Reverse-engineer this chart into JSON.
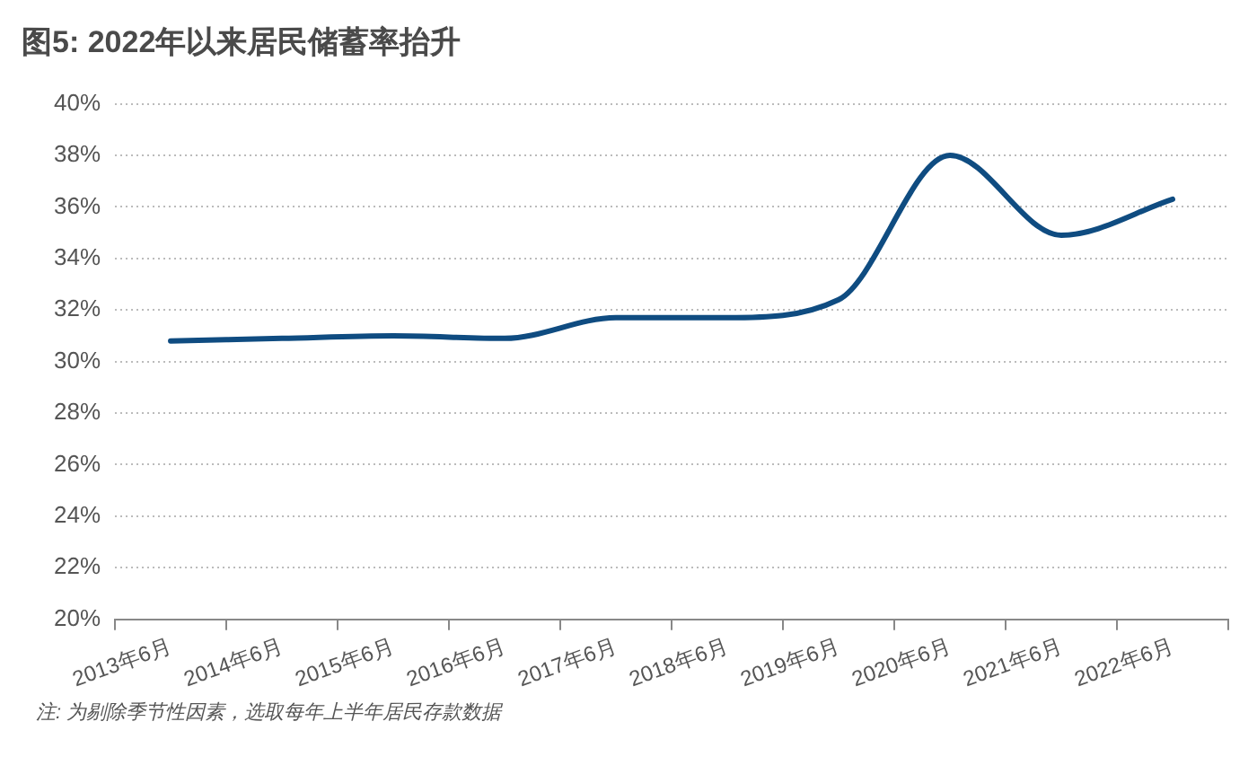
{
  "chart_data": {
    "type": "line",
    "title": "图5: 2022年以来居民储蓄率抬升",
    "categories": [
      "2013年6月",
      "2014年6月",
      "2015年6月",
      "2016年6月",
      "2017年6月",
      "2018年6月",
      "2019年6月",
      "2020年6月",
      "2021年6月",
      "2022年6月"
    ],
    "series": [
      {
        "color": "#0f4c81",
        "values": [
          30.8,
          30.9,
          31.0,
          30.9,
          31.7,
          31.7,
          32.4,
          38.0,
          34.9,
          36.3
        ]
      }
    ],
    "ylim": [
      20,
      40
    ],
    "yticks": [
      {
        "value": 20,
        "label": "20%"
      },
      {
        "value": 22,
        "label": "22%"
      },
      {
        "value": 24,
        "label": "24%"
      },
      {
        "value": 26,
        "label": "26%"
      },
      {
        "value": 28,
        "label": "28%"
      },
      {
        "value": 30,
        "label": "30%"
      },
      {
        "value": 32,
        "label": "32%"
      },
      {
        "value": 34,
        "label": "34%"
      },
      {
        "value": 36,
        "label": "36%"
      },
      {
        "value": 38,
        "label": "38%"
      },
      {
        "value": 40,
        "label": "40%"
      }
    ],
    "grid": "y",
    "legend": false,
    "marker": "none",
    "line_style": "solid",
    "annotations": [
      "注: 为剔除季节性因素，选取每年上半年居民存款数据"
    ]
  }
}
